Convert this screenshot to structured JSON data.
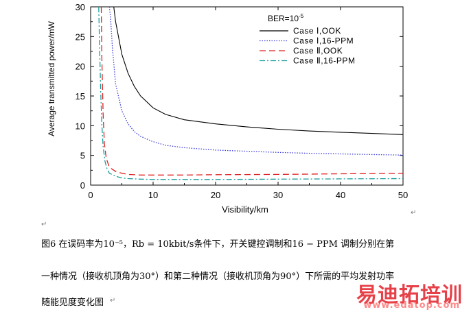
{
  "chart_data": {
    "type": "line",
    "title": "",
    "xlabel": "Visibility/km",
    "ylabel": "Average transmitted power/mW",
    "xlim": [
      0,
      50
    ],
    "ylim": [
      0,
      30
    ],
    "xticks": [
      0,
      10,
      20,
      30,
      40,
      50
    ],
    "yticks": [
      0,
      5,
      10,
      15,
      20,
      25,
      30
    ],
    "grid": false,
    "legend": {
      "title_prefix": "BER=10",
      "title_exp": "-5",
      "placement": "top-right"
    },
    "series": [
      {
        "name": "Case Ⅰ,OOK",
        "color": "#000000",
        "dash": "solid",
        "x": [
          3.7,
          4,
          5,
          6,
          7,
          8,
          10,
          12,
          15,
          20,
          25,
          30,
          35,
          40,
          45,
          50
        ],
        "y": [
          30,
          27.5,
          22,
          18.8,
          16.6,
          15.0,
          13.0,
          11.9,
          11.0,
          10.3,
          9.8,
          9.4,
          9.1,
          8.9,
          8.7,
          8.5
        ]
      },
      {
        "name": "Case Ⅰ,16-PPM",
        "color": "#3c3cd8",
        "dash": "dotted",
        "x": [
          3.0,
          3.2,
          3.5,
          4,
          5,
          6,
          7,
          8,
          10,
          12,
          15,
          20,
          25,
          30,
          35,
          40,
          45,
          50
        ],
        "y": [
          30,
          28,
          23,
          17,
          12.5,
          10.3,
          9.0,
          8.2,
          7.3,
          6.7,
          6.3,
          5.9,
          5.7,
          5.5,
          5.35,
          5.25,
          5.15,
          5.05
        ]
      },
      {
        "name": "Case Ⅱ,OOK",
        "color": "#e02020",
        "dash": "dashed",
        "x": [
          1.7,
          1.8,
          2.0,
          2.2,
          2.5,
          3,
          4,
          5,
          6,
          8,
          10,
          15,
          20,
          30,
          40,
          50
        ],
        "y": [
          30,
          21,
          12,
          7,
          4.5,
          3.0,
          2.3,
          2.0,
          1.8,
          1.7,
          1.7,
          1.7,
          1.75,
          1.8,
          1.9,
          2.0
        ]
      },
      {
        "name": "Case Ⅱ,16-PPM",
        "color": "#1a9c9c",
        "dash": "dashdot",
        "x": [
          1.3,
          1.4,
          1.6,
          1.8,
          2.0,
          2.3,
          2.6,
          3,
          4,
          5,
          6,
          8,
          10,
          15,
          20,
          30,
          40,
          50
        ],
        "y": [
          30,
          25,
          16,
          10,
          6.5,
          4.0,
          2.8,
          2.0,
          1.5,
          1.2,
          1.1,
          1.0,
          0.95,
          0.95,
          0.95,
          1.0,
          1.05,
          1.1
        ]
      }
    ]
  },
  "caption": {
    "line1": "图6  在误码率为10⁻⁵，Rb = 10kbit/s条件下，开关键控调制和16 − PPM  调制分别在第",
    "line2": "一种情况（接收机顶角为30°）和第二种情况（接收机顶角为90°）下所需的平均发射功率",
    "line3": "随能见度变化图"
  },
  "marks": {
    "pilcrow": "↵"
  },
  "watermark": {
    "title": "易迪拓培训",
    "url": "www.edatop.com"
  }
}
